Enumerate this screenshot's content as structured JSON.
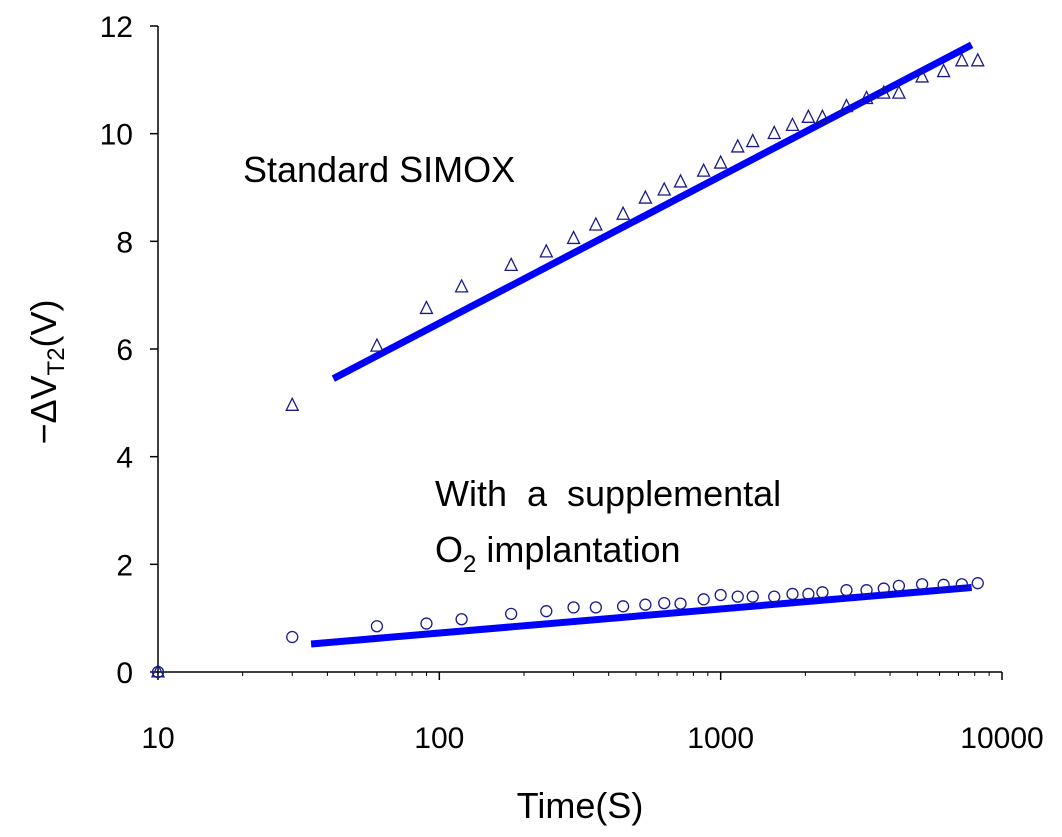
{
  "chart_data": {
    "type": "scatter",
    "x_scale": "log",
    "xlim": [
      10,
      10000
    ],
    "ylim": [
      0,
      12
    ],
    "xlabel": "Time(S)",
    "ylabel": {
      "main": "−ΔV",
      "subscript": "T2",
      "suffix": "(V)"
    },
    "x_ticks": [
      "10",
      "100",
      "1000",
      "10000"
    ],
    "y_ticks": [
      "0",
      "2",
      "4",
      "6",
      "8",
      "10",
      "12"
    ],
    "grid": false,
    "colors": {
      "markers": "#1a1a8c",
      "fit_line": "#0000ff"
    },
    "annotations": [
      {
        "id": "standard",
        "text": "Standard SIMOX"
      },
      {
        "id": "supplemental",
        "line1": "With  a  supplemental",
        "line2_main": "O",
        "line2_sub": "2",
        "line2_rest": " implantation"
      }
    ],
    "series": [
      {
        "label": "Standard SIMOX",
        "marker": "triangle",
        "x": [
          10,
          30,
          60,
          90,
          120,
          180,
          240,
          300,
          360,
          450,
          540,
          630,
          720,
          870,
          1000,
          1150,
          1300,
          1550,
          1800,
          2050,
          2300,
          2800,
          3300,
          3800,
          4300,
          5200,
          6200,
          7200,
          8200
        ],
        "y": [
          0,
          4.95,
          6.05,
          6.75,
          7.15,
          7.55,
          7.8,
          8.05,
          8.3,
          8.5,
          8.8,
          8.95,
          9.1,
          9.3,
          9.45,
          9.75,
          9.85,
          10.0,
          10.15,
          10.3,
          10.3,
          10.5,
          10.65,
          10.75,
          10.75,
          11.05,
          11.15,
          11.35,
          11.35
        ]
      },
      {
        "label": "With a supplemental O2 implantation",
        "marker": "circle",
        "x": [
          10,
          30,
          60,
          90,
          120,
          180,
          240,
          300,
          360,
          450,
          540,
          630,
          720,
          870,
          1000,
          1150,
          1300,
          1550,
          1800,
          2050,
          2300,
          2800,
          3300,
          3800,
          4300,
          5200,
          6200,
          7200,
          8200
        ],
        "y": [
          0,
          0.65,
          0.85,
          0.9,
          0.98,
          1.08,
          1.13,
          1.2,
          1.2,
          1.22,
          1.25,
          1.28,
          1.27,
          1.35,
          1.43,
          1.4,
          1.4,
          1.4,
          1.45,
          1.45,
          1.48,
          1.52,
          1.52,
          1.55,
          1.6,
          1.63,
          1.62,
          1.63,
          1.65
        ]
      }
    ],
    "fit_lines": [
      {
        "label": "Standard SIMOX fit",
        "x": [
          42,
          7800
        ],
        "y": [
          5.45,
          11.65
        ]
      },
      {
        "label": "Supplemental O2 fit",
        "x": [
          35,
          7800
        ],
        "y": [
          0.52,
          1.57
        ]
      }
    ]
  }
}
